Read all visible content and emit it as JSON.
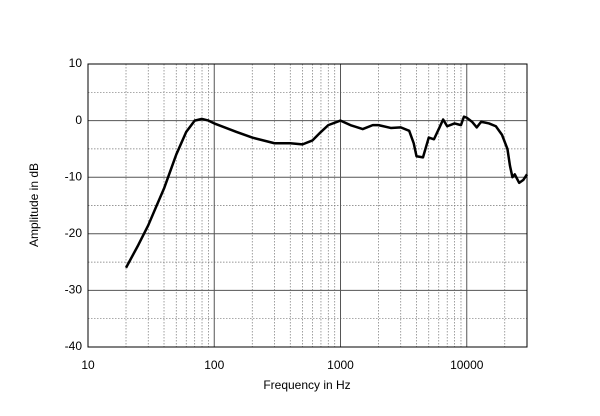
{
  "chart_data": {
    "type": "line",
    "xlabel": "Frequency in Hz",
    "ylabel": "Amplitude in dB",
    "xscale": "log",
    "grid": true,
    "xlim": [
      10,
      30000
    ],
    "ylim": [
      -40,
      10
    ],
    "xticks": [
      10,
      100,
      1000,
      10000
    ],
    "xminorticks": [
      20,
      30,
      40,
      50,
      60,
      70,
      80,
      90,
      200,
      300,
      400,
      500,
      600,
      700,
      800,
      900,
      2000,
      3000,
      4000,
      5000,
      6000,
      7000,
      8000,
      9000,
      20000
    ],
    "yticks": [
      -40,
      -30,
      -20,
      -10,
      0,
      10
    ],
    "yminorticks": [
      -35,
      -25,
      -15,
      -5,
      5
    ],
    "series": [
      {
        "color": "#000000",
        "x": [
          20,
          25,
          30,
          35,
          40,
          50,
          60,
          70,
          80,
          90,
          100,
          150,
          200,
          300,
          400,
          500,
          600,
          700,
          800,
          1000,
          1200,
          1500,
          1800,
          2000,
          2500,
          3000,
          3500,
          3800,
          4000,
          4500,
          5000,
          5500,
          6000,
          6500,
          7000,
          8000,
          9000,
          9500,
          10000,
          11000,
          12000,
          13000,
          15000,
          17000,
          19000,
          21000,
          22000,
          23000,
          24000,
          26000,
          28000,
          30000
        ],
        "values": [
          -26,
          -22,
          -18.5,
          -15,
          -12,
          -6,
          -2,
          0,
          0.3,
          0,
          -0.5,
          -2,
          -3,
          -4,
          -4,
          -4.2,
          -3.5,
          -2,
          -0.8,
          0,
          -0.8,
          -1.5,
          -0.8,
          -0.8,
          -1.3,
          -1.2,
          -1.8,
          -4,
          -6.3,
          -6.5,
          -3,
          -3.3,
          -1.5,
          0.2,
          -1,
          -0.5,
          -0.8,
          0.7,
          0.5,
          -0.2,
          -1.2,
          -0.2,
          -0.5,
          -1,
          -2.5,
          -5,
          -8,
          -10,
          -9.5,
          -11,
          -10.5,
          -9.5
        ]
      }
    ]
  }
}
